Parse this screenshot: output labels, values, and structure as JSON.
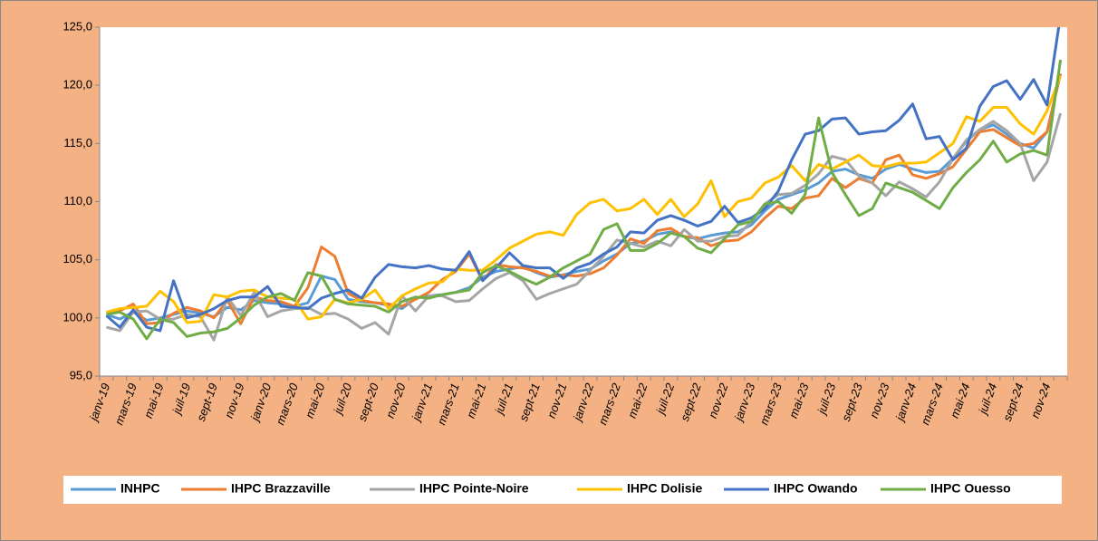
{
  "chart_data": {
    "type": "line",
    "categories": [
      "janv-19",
      null,
      "mars-19",
      null,
      "mai-19",
      null,
      "juil-19",
      null,
      "sept-19",
      null,
      "nov-19",
      null,
      "janv-20",
      null,
      "mars-20",
      null,
      "mai-20",
      null,
      "juil-20",
      null,
      "sept-20",
      null,
      "nov-20",
      null,
      "janv-21",
      null,
      "mars-21",
      null,
      "mai-21",
      null,
      "juil-21",
      null,
      "sept-21",
      null,
      "nov-21",
      null,
      "janv-22",
      null,
      "mars-22",
      null,
      "mai-22",
      null,
      "juil-22",
      null,
      "sept-22",
      null,
      "nov-22",
      null,
      "janv-23",
      null,
      "mars-23",
      null,
      "mai-23",
      null,
      "juil-23",
      null,
      "sept-23",
      null,
      "nov-23",
      null,
      "janv-24",
      null,
      "mars-24",
      null,
      "mai-24",
      null,
      "juil-24",
      null,
      "sept-24",
      null,
      "nov-24",
      null
    ],
    "series": [
      {
        "name": "INHPC",
        "color": "#5B9BD5",
        "values": [
          100.3,
          99.9,
          100.5,
          99.8,
          100.0,
          100.3,
          100.6,
          100.4,
          100.1,
          100.9,
          100.7,
          101.5,
          101.3,
          101.2,
          101.0,
          101.3,
          103.6,
          103.3,
          101.6,
          101.4,
          101.3,
          101.1,
          100.8,
          101.7,
          101.9,
          102.0,
          102.2,
          102.6,
          103.5,
          104.0,
          104.2,
          104.4,
          103.9,
          103.5,
          103.7,
          104.0,
          104.2,
          104.9,
          105.5,
          106.4,
          106.6,
          107.2,
          107.4,
          107.0,
          106.8,
          107.1,
          107.3,
          107.4,
          108.0,
          109.2,
          110.2,
          110.6,
          111.0,
          111.6,
          112.6,
          112.8,
          112.3,
          112.0,
          112.8,
          113.2,
          112.8,
          112.5,
          112.6,
          113.7,
          115.2,
          116.2,
          116.6,
          115.8,
          115.0,
          114.6,
          116.0,
          121.0
        ]
      },
      {
        "name": "IHPC Brazzaville",
        "color": "#ED7D31",
        "values": [
          100.4,
          100.6,
          101.2,
          99.5,
          99.6,
          100.4,
          100.9,
          100.6,
          100.0,
          101.5,
          99.5,
          101.8,
          101.5,
          101.4,
          101.0,
          102.6,
          106.1,
          105.3,
          102.1,
          101.5,
          101.3,
          101.2,
          101.0,
          101.6,
          102.2,
          103.3,
          104.0,
          105.5,
          103.2,
          104.6,
          104.4,
          104.3,
          104.0,
          103.6,
          103.7,
          103.6,
          103.8,
          104.3,
          105.4,
          106.8,
          106.4,
          107.5,
          107.7,
          107.0,
          106.9,
          106.2,
          106.6,
          106.7,
          107.4,
          108.6,
          109.6,
          109.4,
          110.3,
          110.5,
          112.0,
          111.2,
          112.0,
          111.6,
          113.6,
          114.0,
          112.3,
          112.0,
          112.4,
          113.0,
          114.5,
          116.0,
          116.2,
          115.5,
          114.8,
          115.0,
          116.0,
          121.0
        ]
      },
      {
        "name": "IHPC Pointe-Noire",
        "color": "#A5A5A5",
        "values": [
          99.2,
          98.9,
          100.5,
          100.6,
          99.9,
          99.9,
          100.3,
          100.1,
          98.1,
          101.8,
          100.2,
          102.2,
          100.1,
          100.6,
          100.8,
          100.9,
          100.3,
          100.4,
          99.9,
          99.1,
          99.6,
          98.6,
          101.9,
          100.6,
          101.9,
          101.9,
          101.4,
          101.5,
          102.5,
          103.4,
          103.9,
          103.2,
          101.6,
          102.1,
          102.5,
          102.9,
          104.1,
          105.3,
          106.7,
          106.4,
          106.1,
          106.6,
          106.2,
          107.6,
          106.6,
          106.6,
          107.0,
          107.1,
          108.3,
          109.8,
          110.6,
          110.7,
          111.4,
          112.4,
          113.9,
          113.6,
          112.2,
          111.6,
          110.5,
          111.7,
          111.1,
          110.4,
          111.7,
          113.7,
          115.3,
          116.2,
          116.9,
          116.1,
          115.0,
          111.8,
          113.4,
          117.6
        ]
      },
      {
        "name": "IHPC Dolisie",
        "color": "#FFC000",
        "values": [
          100.5,
          100.8,
          100.9,
          101.0,
          102.3,
          101.4,
          99.6,
          99.7,
          102.0,
          101.8,
          102.3,
          102.4,
          101.8,
          101.7,
          101.6,
          99.9,
          100.1,
          101.6,
          101.3,
          101.6,
          102.4,
          100.8,
          101.9,
          102.5,
          103.0,
          103.1,
          104.2,
          104.1,
          104.1,
          105.0,
          106.0,
          106.6,
          107.2,
          107.4,
          107.1,
          108.9,
          109.9,
          110.2,
          109.2,
          109.4,
          110.2,
          108.9,
          110.2,
          108.7,
          109.8,
          111.8,
          108.7,
          110.0,
          110.3,
          111.6,
          112.1,
          113.1,
          111.8,
          113.2,
          112.8,
          113.4,
          114.0,
          113.1,
          113.0,
          113.3,
          113.3,
          113.4,
          114.2,
          115.0,
          117.3,
          116.9,
          118.1,
          118.1,
          116.7,
          115.8,
          117.8,
          120.8
        ]
      },
      {
        "name": "IHPC Owando",
        "color": "#4472C4",
        "values": [
          100.2,
          99.2,
          100.7,
          99.2,
          98.9,
          103.2,
          100.0,
          100.3,
          100.8,
          101.5,
          101.8,
          101.8,
          102.7,
          101.0,
          100.9,
          100.8,
          101.7,
          102.1,
          102.4,
          101.7,
          103.5,
          104.6,
          104.4,
          104.3,
          104.5,
          104.2,
          104.1,
          105.7,
          103.2,
          104.3,
          105.6,
          104.5,
          104.3,
          104.3,
          103.4,
          104.3,
          104.7,
          105.5,
          106.1,
          107.4,
          107.3,
          108.4,
          108.8,
          108.4,
          107.9,
          108.3,
          109.6,
          108.2,
          108.6,
          109.4,
          110.9,
          113.6,
          115.8,
          116.1,
          117.1,
          117.2,
          115.8,
          116.0,
          116.1,
          117.0,
          118.4,
          115.4,
          115.6,
          113.6,
          114.6,
          118.2,
          119.9,
          120.4,
          118.8,
          120.5,
          118.3,
          126.0
        ]
      },
      {
        "name": "IHPC Ouesso",
        "color": "#70AD47",
        "values": [
          100.3,
          100.5,
          99.9,
          98.2,
          99.9,
          99.6,
          98.4,
          98.7,
          98.8,
          99.1,
          100.0,
          101.1,
          101.8,
          102.1,
          101.5,
          103.9,
          103.6,
          101.6,
          101.2,
          101.1,
          101.0,
          100.5,
          101.4,
          101.8,
          101.7,
          102.0,
          102.2,
          102.4,
          103.9,
          104.5,
          104.0,
          103.4,
          102.9,
          103.5,
          104.3,
          104.9,
          105.5,
          107.6,
          108.1,
          105.8,
          105.8,
          106.4,
          107.3,
          107.0,
          106.0,
          105.6,
          106.8,
          108.0,
          108.3,
          109.8,
          110.0,
          109.0,
          110.6,
          117.2,
          112.5,
          110.6,
          108.8,
          109.4,
          111.6,
          111.2,
          110.8,
          110.1,
          109.4,
          111.2,
          112.5,
          113.6,
          115.2,
          113.4,
          114.1,
          114.4,
          114.0,
          122.2
        ]
      }
    ],
    "ylim": [
      95,
      125
    ],
    "yticks": [
      {
        "value": 95,
        "label": "95,0"
      },
      {
        "value": 100,
        "label": "100,0"
      },
      {
        "value": 105,
        "label": "105,0"
      },
      {
        "value": 110,
        "label": "110,0"
      },
      {
        "value": 115,
        "label": "115,0"
      },
      {
        "value": 120,
        "label": "120,0"
      },
      {
        "value": 125,
        "label": "125,0"
      }
    ],
    "grid": false,
    "legend": "bottom"
  }
}
